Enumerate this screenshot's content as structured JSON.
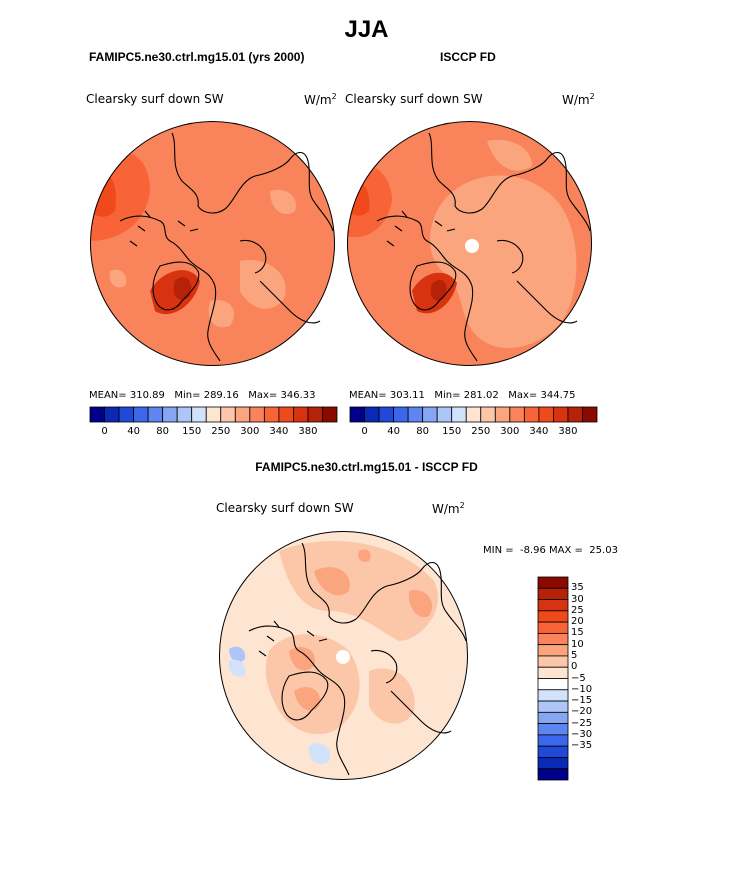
{
  "title": "JJA",
  "panels": [
    {
      "subtitle": "FAMIPC5.ne30.ctrl.mg15.01 (yrs 2000)",
      "variable": "Clearsky surf down SW",
      "units": "W/m",
      "units_sup": "2",
      "stats": {
        "mean_label": "MEAN=",
        "mean": "310.89",
        "min_label": "Min=",
        "min": "289.16",
        "max_label": "Max=",
        "max": "346.33"
      }
    },
    {
      "subtitle": "ISCCP FD",
      "variable": "Clearsky surf down SW",
      "units": "W/m",
      "units_sup": "2",
      "stats": {
        "mean_label": "MEAN=",
        "mean": "303.11",
        "min_label": "Min=",
        "min": "281.02",
        "max_label": "Max=",
        "max": "344.75"
      }
    }
  ],
  "abs_colorbar": {
    "colors": [
      "#00008b",
      "#0a2ab5",
      "#1f49d6",
      "#3a67ec",
      "#5f86f0",
      "#86a6f2",
      "#aec6f7",
      "#d2e2fb",
      "#fde5d2",
      "#fcc7a9",
      "#fba57f",
      "#f9845b",
      "#f86437",
      "#f04a1c",
      "#d83311",
      "#b52208",
      "#8b0a00"
    ],
    "tick_labels": [
      "0",
      "40",
      "80",
      "150",
      "250",
      "300",
      "340",
      "380"
    ]
  },
  "diff_panel": {
    "title": "FAMIPC5.ne30.ctrl.mg15.01 - ISCCP FD",
    "variable": "Clearsky surf down SW",
    "units": "W/m",
    "units_sup": "2",
    "min_label": "MIN =",
    "min": "-8.96",
    "max_label": "MAX =",
    "max": "25.03"
  },
  "diff_colorbar": {
    "colors": [
      "#8b0a00",
      "#b52208",
      "#d83311",
      "#f04a1c",
      "#f86437",
      "#f9845b",
      "#fba57f",
      "#fcc7a9",
      "#fde5d2",
      "#ffffff",
      "#d2e2fb",
      "#aec6f7",
      "#86a6f2",
      "#5f86f0",
      "#3a67ec",
      "#1f49d6",
      "#0a2ab5",
      "#00008b"
    ],
    "tick_labels": [
      "35",
      "30",
      "25",
      "20",
      "15",
      "10",
      "5",
      "0",
      "−5",
      "−10",
      "−15",
      "−20",
      "−25",
      "−30",
      "−35"
    ]
  }
}
